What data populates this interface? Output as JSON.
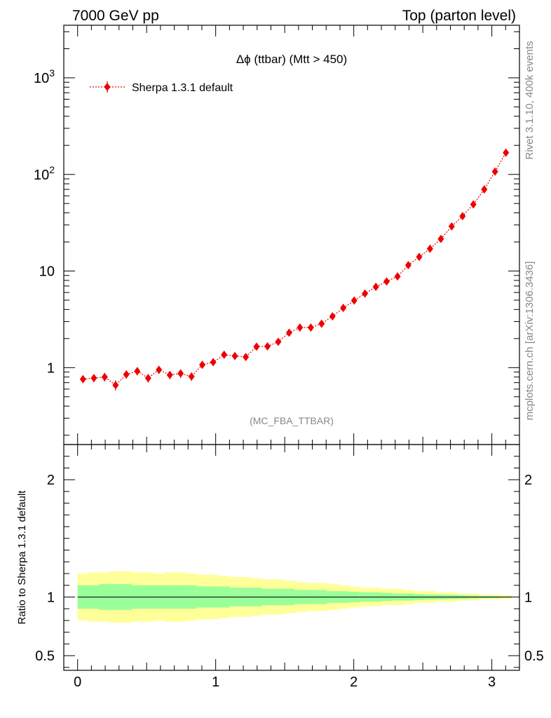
{
  "header": {
    "left": "7000 GeV pp",
    "right": "Top (parton level)"
  },
  "side_labels": {
    "rivet": "Rivet 3.1.10,  400k events",
    "mcplots": "mcplots.cern.ch [arXiv:1306.3436]"
  },
  "colors": {
    "data": "#ee0000",
    "band_outer": "#ffff99",
    "band_inner": "#99ff99",
    "axis": "#000000",
    "annotation": "#888888"
  },
  "chart_data": [
    {
      "type": "scatter",
      "title": "Δϕ (ttbar) (Mtt > 450)",
      "annotation": "(MC_FBA_TTBAR)",
      "yscale": "log",
      "xlim": [
        -0.1,
        3.2
      ],
      "ylim": [
        0.16,
        3500
      ],
      "y_tick_labels": [
        {
          "value": 1,
          "label": "1"
        },
        {
          "value": 10,
          "label": "10"
        },
        {
          "value": 100,
          "label": "10",
          "sup": "2"
        },
        {
          "value": 1000,
          "label": "10",
          "sup": "3"
        }
      ],
      "legend": {
        "placement": "top-left",
        "entries": [
          "Sherpa 1.3.1 default"
        ]
      },
      "series": [
        {
          "name": "Sherpa 1.3.1 default",
          "x": [
            0.039,
            0.118,
            0.196,
            0.275,
            0.353,
            0.432,
            0.511,
            0.589,
            0.668,
            0.746,
            0.825,
            0.903,
            0.982,
            1.061,
            1.139,
            1.218,
            1.296,
            1.375,
            1.453,
            1.532,
            1.61,
            1.689,
            1.767,
            1.846,
            1.924,
            2.003,
            2.081,
            2.16,
            2.238,
            2.317,
            2.395,
            2.474,
            2.552,
            2.631,
            2.709,
            2.788,
            2.866,
            2.945,
            3.023,
            3.102
          ],
          "y": [
            0.76,
            0.78,
            0.8,
            0.66,
            0.85,
            0.92,
            0.78,
            0.95,
            0.84,
            0.87,
            0.81,
            1.07,
            1.14,
            1.36,
            1.32,
            1.29,
            1.65,
            1.66,
            1.85,
            2.3,
            2.6,
            2.6,
            2.85,
            3.4,
            4.15,
            4.95,
            5.85,
            6.85,
            7.8,
            8.8,
            11.5,
            14.0,
            17.0,
            21.5,
            29.0,
            37.0,
            49.0,
            70.0,
            107.0,
            168.0
          ],
          "yerr": [
            0.07,
            0.07,
            0.08,
            0.08,
            0.08,
            0.09,
            0.08,
            0.09,
            0.08,
            0.09,
            0.08,
            0.09,
            0.09,
            0.1,
            0.1,
            0.1,
            0.11,
            0.11,
            0.12,
            0.13,
            0.14,
            0.14,
            0.15,
            0.17,
            0.19,
            0.21,
            0.24,
            0.27,
            0.3,
            0.33,
            0.4,
            0.47,
            0.55,
            0.65,
            0.85,
            1.05,
            1.3,
            1.8,
            2.6,
            3.9
          ]
        }
      ]
    },
    {
      "type": "area",
      "ylabel": "Ratio to Sherpa 1.3.1 default",
      "xlim": [
        -0.1,
        3.2
      ],
      "ylim": [
        0.375,
        2.3
      ],
      "x_tick_labels": [
        "0",
        "1",
        "2",
        "3"
      ],
      "y_tick_labels": [
        "0.5",
        "1",
        "2"
      ],
      "reference_line": 1,
      "bins": [
        0,
        0.0785,
        0.157,
        0.2355,
        0.314,
        0.3925,
        0.471,
        0.5495,
        0.628,
        0.7065,
        0.785,
        0.8635,
        0.942,
        1.0205,
        1.099,
        1.1775,
        1.256,
        1.3345,
        1.413,
        1.4915,
        1.57,
        1.6485,
        1.727,
        1.8055,
        1.884,
        1.9625,
        2.041,
        2.1195,
        2.198,
        2.2765,
        2.355,
        2.4335,
        2.512,
        2.5905,
        2.669,
        2.7475,
        2.826,
        2.9045,
        2.983,
        3.0615,
        3.14
      ],
      "band_outer_half_width": [
        0.2,
        0.21,
        0.21,
        0.22,
        0.22,
        0.21,
        0.21,
        0.2,
        0.21,
        0.21,
        0.2,
        0.19,
        0.19,
        0.18,
        0.17,
        0.17,
        0.16,
        0.15,
        0.15,
        0.14,
        0.13,
        0.12,
        0.12,
        0.11,
        0.1,
        0.09,
        0.08,
        0.08,
        0.07,
        0.07,
        0.06,
        0.05,
        0.05,
        0.04,
        0.04,
        0.03,
        0.03,
        0.02,
        0.02,
        0.015
      ],
      "band_inner_half_width": [
        0.1,
        0.1,
        0.11,
        0.11,
        0.11,
        0.1,
        0.1,
        0.1,
        0.1,
        0.1,
        0.1,
        0.09,
        0.09,
        0.09,
        0.08,
        0.08,
        0.08,
        0.07,
        0.07,
        0.07,
        0.06,
        0.06,
        0.06,
        0.05,
        0.05,
        0.045,
        0.04,
        0.04,
        0.035,
        0.03,
        0.03,
        0.025,
        0.022,
        0.02,
        0.018,
        0.015,
        0.012,
        0.01,
        0.008,
        0.006
      ]
    }
  ]
}
